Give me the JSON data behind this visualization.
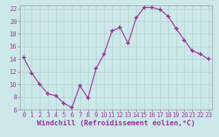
{
  "x": [
    0,
    1,
    2,
    3,
    4,
    5,
    6,
    7,
    8,
    9,
    10,
    11,
    12,
    13,
    14,
    15,
    16,
    17,
    18,
    19,
    20,
    21,
    22,
    23
  ],
  "y": [
    14.2,
    11.8,
    10.0,
    8.5,
    8.2,
    7.0,
    6.3,
    9.8,
    7.8,
    12.5,
    14.8,
    18.5,
    19.0,
    16.5,
    20.5,
    22.2,
    22.2,
    21.8,
    20.8,
    18.8,
    17.0,
    15.3,
    14.8,
    14.0
  ],
  "line_color": "#993399",
  "marker": "+",
  "marker_size": 4,
  "marker_edge_width": 1.2,
  "background_color": "#cce8e8",
  "grid_color": "#aacccc",
  "xlabel": "Windchill (Refroidissement éolien,°C)",
  "ylim": [
    6,
    22.5
  ],
  "xlim": [
    -0.5,
    23.5
  ],
  "yticks": [
    6,
    8,
    10,
    12,
    14,
    16,
    18,
    20,
    22
  ],
  "xticks": [
    0,
    1,
    2,
    3,
    4,
    5,
    6,
    7,
    8,
    9,
    10,
    11,
    12,
    13,
    14,
    15,
    16,
    17,
    18,
    19,
    20,
    21,
    22,
    23
  ],
  "xlabel_fontsize": 7.5,
  "tick_fontsize": 6.5,
  "line_width": 1.0,
  "grid_linewidth": 0.5,
  "spine_color": "#888888"
}
